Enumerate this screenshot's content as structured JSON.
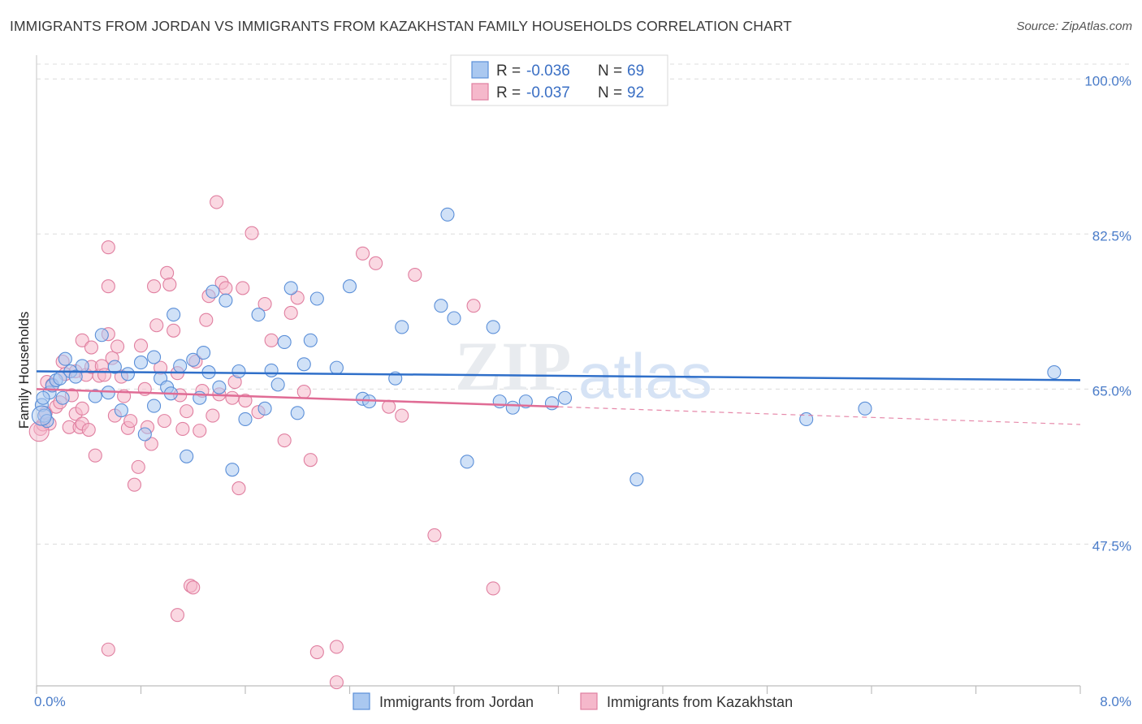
{
  "title": "IMMIGRANTS FROM JORDAN VS IMMIGRANTS FROM KAZAKHSTAN FAMILY HOUSEHOLDS CORRELATION CHART",
  "source": "Source: ZipAtlas.com",
  "watermark": {
    "zip": "ZIP",
    "atlas": "atlas"
  },
  "colors": {
    "jordan_fill": "#aac8f0",
    "jordan_stroke": "#5b8fd8",
    "jordan_line": "#2f6fc9",
    "kaz_fill": "#f5b8cb",
    "kaz_stroke": "#e07fa0",
    "kaz_line": "#e06c95",
    "grid": "#dcdcdc",
    "tick_text": "#4a7cc9"
  },
  "legend": {
    "rows": [
      {
        "r_label": "R = ",
        "r_value": "-0.036",
        "n_label": "N = ",
        "n_value": "69"
      },
      {
        "r_label": "R = ",
        "r_value": "-0.037",
        "n_label": "N = ",
        "n_value": "92"
      }
    ]
  },
  "chart_data": {
    "type": "scatter",
    "title": "IMMIGRANTS FROM JORDAN VS IMMIGRANTS FROM KAZAKHSTAN FAMILY HOUSEHOLDS CORRELATION CHART",
    "xlabel": "",
    "ylabel": "Family Households",
    "xlim": [
      0,
      8
    ],
    "ylim": [
      31.5,
      102.5
    ],
    "x_tick_labels": [
      "0.0%",
      "8.0%"
    ],
    "y_ticks": [
      47.5,
      65.0,
      82.5,
      100.0
    ],
    "y_tick_labels": [
      "47.5%",
      "65.0%",
      "82.5%",
      "100.0%"
    ],
    "grid": true,
    "legend_position": "top-center",
    "series": [
      {
        "name": "Immigrants from Jordan",
        "R": -0.036,
        "N": 69,
        "trend": {
          "x": [
            0,
            8
          ],
          "y": [
            67.0,
            66.0
          ],
          "dashed_from": null
        },
        "points": [
          [
            0.04,
            63.2
          ],
          [
            0.06,
            62.0
          ],
          [
            0.08,
            61.4
          ],
          [
            0.1,
            64.6
          ],
          [
            0.12,
            65.4
          ],
          [
            0.15,
            66.0
          ],
          [
            0.18,
            66.2
          ],
          [
            0.2,
            64.0
          ],
          [
            0.22,
            68.4
          ],
          [
            0.26,
            67.0
          ],
          [
            0.3,
            66.4
          ],
          [
            0.35,
            67.6
          ],
          [
            0.45,
            64.2
          ],
          [
            0.5,
            71.1
          ],
          [
            0.55,
            64.6
          ],
          [
            0.6,
            67.5
          ],
          [
            0.65,
            62.6
          ],
          [
            0.7,
            66.7
          ],
          [
            0.8,
            68.0
          ],
          [
            0.83,
            59.9
          ],
          [
            0.9,
            68.6
          ],
          [
            0.95,
            66.2
          ],
          [
            1.0,
            65.2
          ],
          [
            1.03,
            64.5
          ],
          [
            1.05,
            73.4
          ],
          [
            1.1,
            67.6
          ],
          [
            1.15,
            57.4
          ],
          [
            1.2,
            68.3
          ],
          [
            1.25,
            64.0
          ],
          [
            1.28,
            69.1
          ],
          [
            1.32,
            66.9
          ],
          [
            1.35,
            76.0
          ],
          [
            1.4,
            65.2
          ],
          [
            1.45,
            75.0
          ],
          [
            1.5,
            55.9
          ],
          [
            1.55,
            67.0
          ],
          [
            1.6,
            61.6
          ],
          [
            1.7,
            73.4
          ],
          [
            1.75,
            62.8
          ],
          [
            1.8,
            67.1
          ],
          [
            1.85,
            65.5
          ],
          [
            1.9,
            70.3
          ],
          [
            1.95,
            76.4
          ],
          [
            2.0,
            62.3
          ],
          [
            2.05,
            67.8
          ],
          [
            2.1,
            70.5
          ],
          [
            2.15,
            75.2
          ],
          [
            2.3,
            67.4
          ],
          [
            2.4,
            76.6
          ],
          [
            2.5,
            63.9
          ],
          [
            2.55,
            63.6
          ],
          [
            2.75,
            66.2
          ],
          [
            2.8,
            72.0
          ],
          [
            3.1,
            74.4
          ],
          [
            3.15,
            84.7
          ],
          [
            3.2,
            73.0
          ],
          [
            3.3,
            56.8
          ],
          [
            3.5,
            72.0
          ],
          [
            3.55,
            63.6
          ],
          [
            3.65,
            62.9
          ],
          [
            3.75,
            63.6
          ],
          [
            3.95,
            63.4
          ],
          [
            4.05,
            64.0
          ],
          [
            4.6,
            54.8
          ],
          [
            5.9,
            61.6
          ],
          [
            6.35,
            62.8
          ],
          [
            7.8,
            66.9
          ],
          [
            0.05,
            64.0
          ],
          [
            0.9,
            63.1
          ]
        ]
      },
      {
        "name": "Immigrants from Kazakhstan",
        "R": -0.037,
        "N": 92,
        "trend": {
          "x": [
            0,
            8
          ],
          "y": [
            65.0,
            61.0
          ],
          "dashed_from": 4.0
        },
        "points": [
          [
            0.03,
            60.5
          ],
          [
            0.05,
            61.0
          ],
          [
            0.07,
            62.3
          ],
          [
            0.08,
            65.8
          ],
          [
            0.1,
            61.1
          ],
          [
            0.12,
            65.5
          ],
          [
            0.15,
            63.0
          ],
          [
            0.18,
            63.5
          ],
          [
            0.2,
            68.1
          ],
          [
            0.22,
            66.7
          ],
          [
            0.25,
            60.7
          ],
          [
            0.27,
            64.3
          ],
          [
            0.3,
            67.0
          ],
          [
            0.3,
            62.2
          ],
          [
            0.33,
            60.7
          ],
          [
            0.35,
            62.8
          ],
          [
            0.35,
            61.1
          ],
          [
            0.35,
            70.5
          ],
          [
            0.38,
            66.6
          ],
          [
            0.42,
            69.7
          ],
          [
            0.4,
            60.4
          ],
          [
            0.42,
            67.5
          ],
          [
            0.45,
            57.5
          ],
          [
            0.48,
            66.5
          ],
          [
            0.5,
            67.6
          ],
          [
            0.52,
            66.6
          ],
          [
            0.55,
            81.0
          ],
          [
            0.55,
            76.6
          ],
          [
            0.55,
            71.2
          ],
          [
            0.58,
            68.5
          ],
          [
            0.6,
            62.0
          ],
          [
            0.62,
            69.8
          ],
          [
            0.65,
            66.4
          ],
          [
            0.67,
            64.2
          ],
          [
            0.7,
            60.6
          ],
          [
            0.72,
            61.4
          ],
          [
            0.75,
            54.2
          ],
          [
            0.78,
            56.2
          ],
          [
            0.8,
            69.9
          ],
          [
            0.83,
            65.0
          ],
          [
            0.85,
            60.7
          ],
          [
            0.88,
            58.8
          ],
          [
            0.9,
            76.6
          ],
          [
            0.92,
            72.2
          ],
          [
            0.95,
            67.4
          ],
          [
            0.98,
            61.4
          ],
          [
            1.0,
            78.1
          ],
          [
            1.02,
            76.8
          ],
          [
            1.05,
            71.6
          ],
          [
            1.08,
            66.8
          ],
          [
            1.1,
            64.3
          ],
          [
            1.12,
            60.5
          ],
          [
            1.15,
            62.5
          ],
          [
            1.18,
            42.8
          ],
          [
            1.2,
            42.6
          ],
          [
            1.22,
            68.1
          ],
          [
            1.25,
            60.3
          ],
          [
            1.27,
            64.8
          ],
          [
            1.3,
            72.8
          ],
          [
            1.32,
            75.5
          ],
          [
            1.35,
            62.0
          ],
          [
            1.38,
            86.1
          ],
          [
            1.4,
            64.4
          ],
          [
            1.42,
            77.0
          ],
          [
            1.45,
            76.4
          ],
          [
            1.5,
            64.0
          ],
          [
            1.52,
            65.8
          ],
          [
            1.55,
            53.8
          ],
          [
            1.58,
            76.4
          ],
          [
            1.6,
            63.7
          ],
          [
            1.65,
            82.6
          ],
          [
            1.7,
            62.4
          ],
          [
            1.75,
            74.6
          ],
          [
            1.8,
            70.5
          ],
          [
            1.9,
            59.2
          ],
          [
            1.95,
            73.6
          ],
          [
            2.0,
            75.3
          ],
          [
            2.05,
            64.7
          ],
          [
            2.1,
            57.0
          ],
          [
            2.3,
            35.9
          ],
          [
            2.15,
            35.3
          ],
          [
            2.3,
            31.9
          ],
          [
            2.5,
            80.3
          ],
          [
            2.6,
            79.2
          ],
          [
            2.7,
            63.0
          ],
          [
            2.8,
            62.0
          ],
          [
            2.9,
            77.9
          ],
          [
            3.05,
            48.5
          ],
          [
            3.35,
            74.4
          ],
          [
            3.5,
            42.5
          ],
          [
            1.08,
            39.5
          ],
          [
            0.55,
            35.6
          ]
        ]
      }
    ]
  },
  "bottom_legend": [
    {
      "label": "Immigrants from Jordan"
    },
    {
      "label": "Immigrants from Kazakhstan"
    }
  ]
}
